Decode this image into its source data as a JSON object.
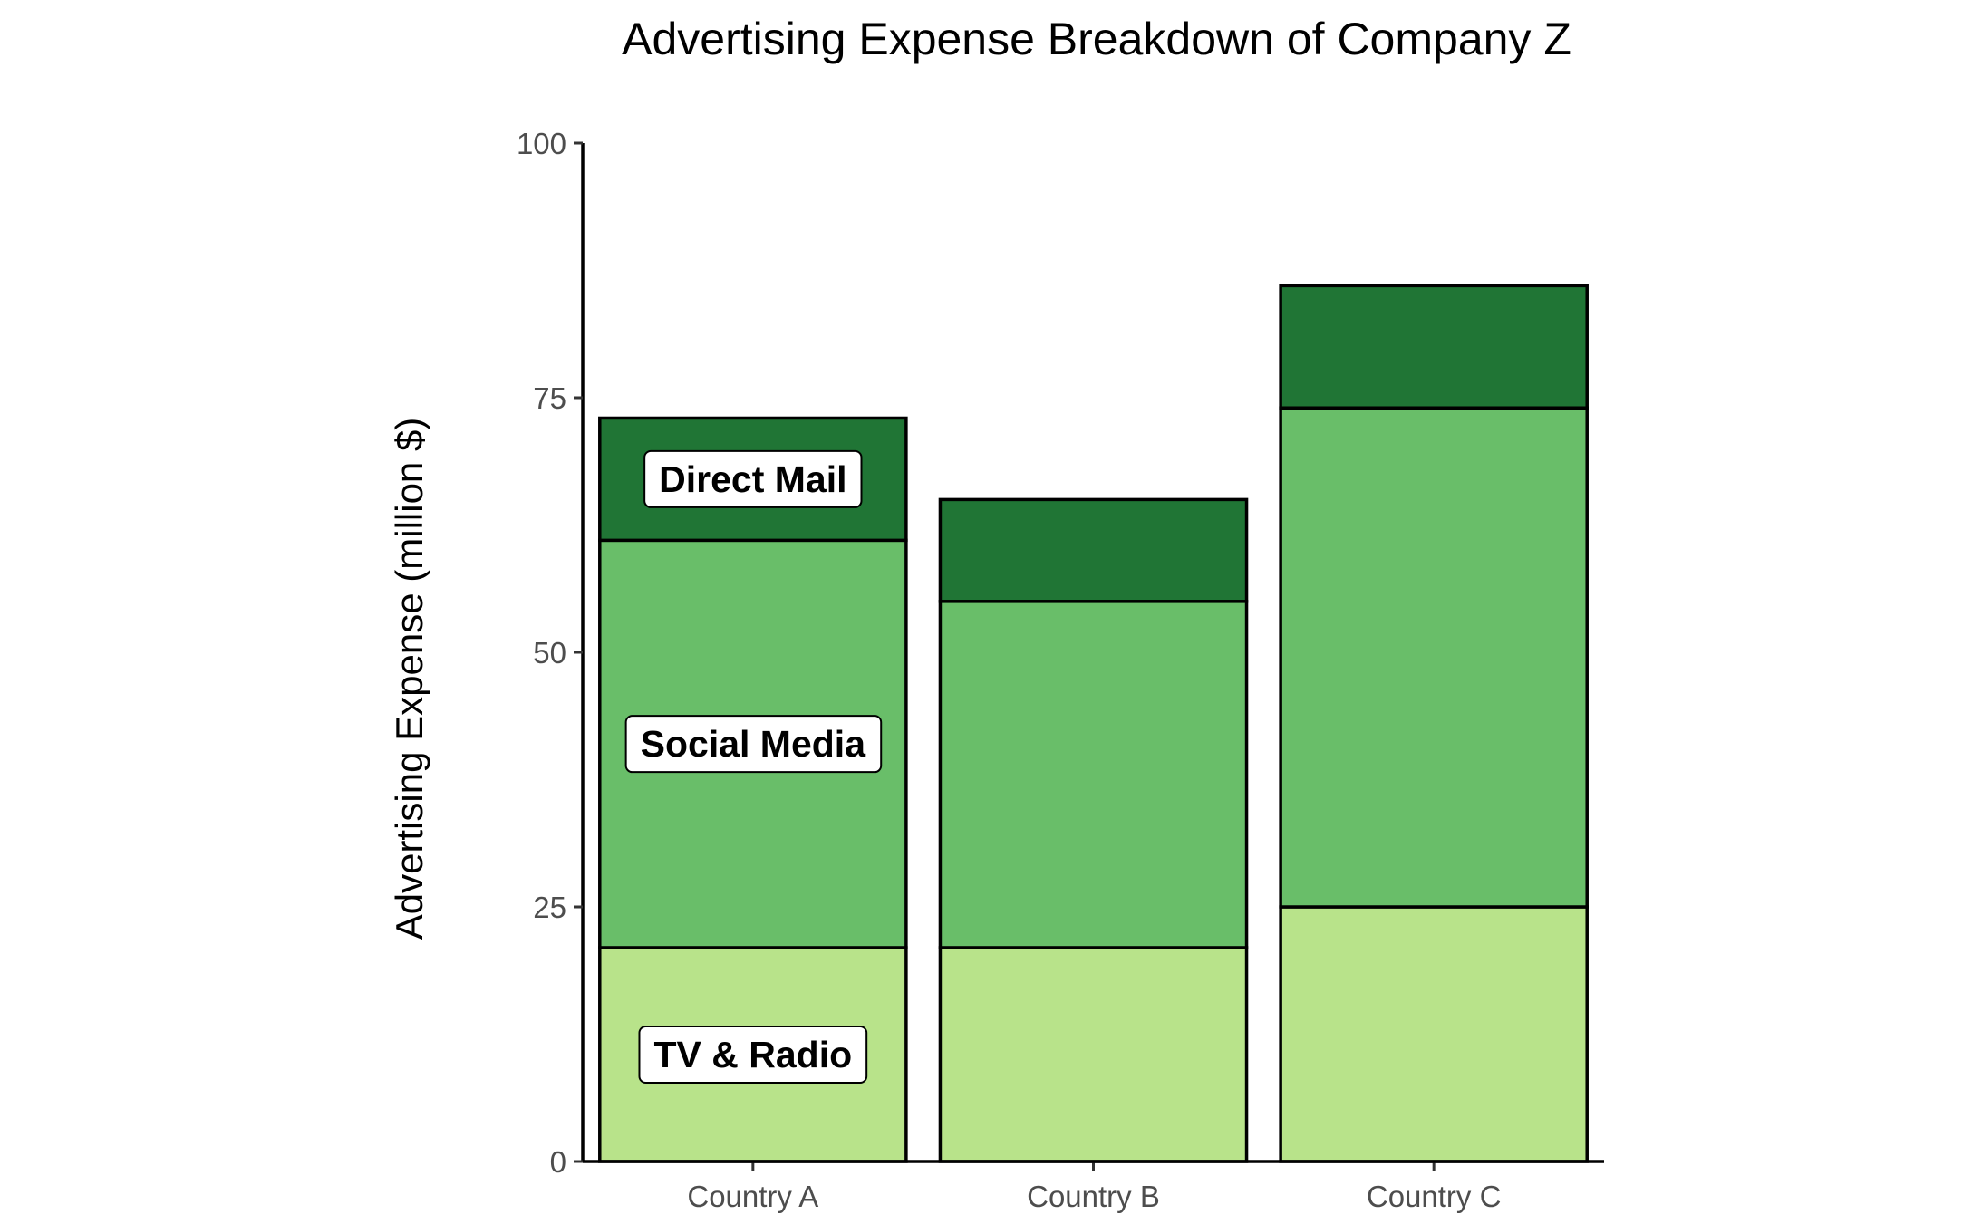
{
  "chart_data": {
    "type": "bar",
    "stacked": true,
    "title": "Advertising Expense Breakdown of Company Z",
    "xlabel": "",
    "ylabel": "Advertising Expense (million $)",
    "ylim": [
      0,
      100
    ],
    "yticks": [
      0,
      25,
      50,
      75,
      100
    ],
    "categories": [
      "Country A",
      "Country B",
      "Country C"
    ],
    "series": [
      {
        "name": "TV & Radio",
        "color": "#b8e38a",
        "values": [
          21,
          21,
          25
        ]
      },
      {
        "name": "Social Media",
        "color": "#69be69",
        "values": [
          40,
          34,
          49
        ]
      },
      {
        "name": "Direct Mail",
        "color": "#207535",
        "values": [
          12,
          10,
          12
        ]
      }
    ],
    "grid": false,
    "legend": "none",
    "segment_labels_on": "Country A"
  }
}
